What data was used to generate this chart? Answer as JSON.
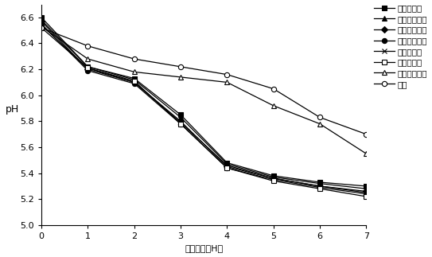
{
  "x": [
    0,
    1,
    2,
    3,
    4,
    5,
    6,
    7
  ],
  "series": [
    {
      "label": "グルコース",
      "values": [
        6.6,
        6.22,
        6.13,
        5.85,
        5.48,
        5.38,
        5.33,
        5.3
      ],
      "marker": "s",
      "fillstyle": "full"
    },
    {
      "label": "ガラクトース",
      "values": [
        6.58,
        6.22,
        6.12,
        5.83,
        5.47,
        5.37,
        5.32,
        5.28
      ],
      "marker": "^",
      "fillstyle": "full"
    },
    {
      "label": "フルクトース",
      "values": [
        6.57,
        6.2,
        6.1,
        5.8,
        5.45,
        5.36,
        5.3,
        5.26
      ],
      "marker": "D",
      "fillstyle": "full"
    },
    {
      "label": "アラビノース",
      "values": [
        6.55,
        6.19,
        6.09,
        5.78,
        5.44,
        5.35,
        5.29,
        5.24
      ],
      "marker": "o",
      "fillstyle": "full"
    },
    {
      "label": "ラムノース",
      "values": [
        6.54,
        6.21,
        6.1,
        5.79,
        5.46,
        5.36,
        5.3,
        5.25
      ],
      "marker": "x",
      "fillstyle": "full"
    },
    {
      "label": "キシロース",
      "values": [
        6.52,
        6.21,
        6.11,
        5.78,
        5.44,
        5.34,
        5.28,
        5.22
      ],
      "marker": "s",
      "fillstyle": "none"
    },
    {
      "label": "キシリトール",
      "values": [
        6.53,
        6.28,
        6.18,
        6.14,
        6.1,
        5.92,
        5.78,
        5.55
      ],
      "marker": "^",
      "fillstyle": "none"
    },
    {
      "label": "対照",
      "values": [
        6.52,
        6.38,
        6.28,
        6.22,
        6.16,
        6.05,
        5.83,
        5.7
      ],
      "marker": "o",
      "fillstyle": "none"
    }
  ],
  "xlabel": "発酵時間（H）",
  "ylabel": "pH",
  "xlim": [
    0,
    7
  ],
  "ylim": [
    5.0,
    6.7
  ],
  "yticks": [
    5.0,
    5.2,
    5.4,
    5.6,
    5.8,
    6.0,
    6.2,
    6.4,
    6.6
  ],
  "xticks": [
    0,
    1,
    2,
    3,
    4,
    5,
    6,
    7
  ],
  "background_color": "#ffffff",
  "markersize": 4.5
}
